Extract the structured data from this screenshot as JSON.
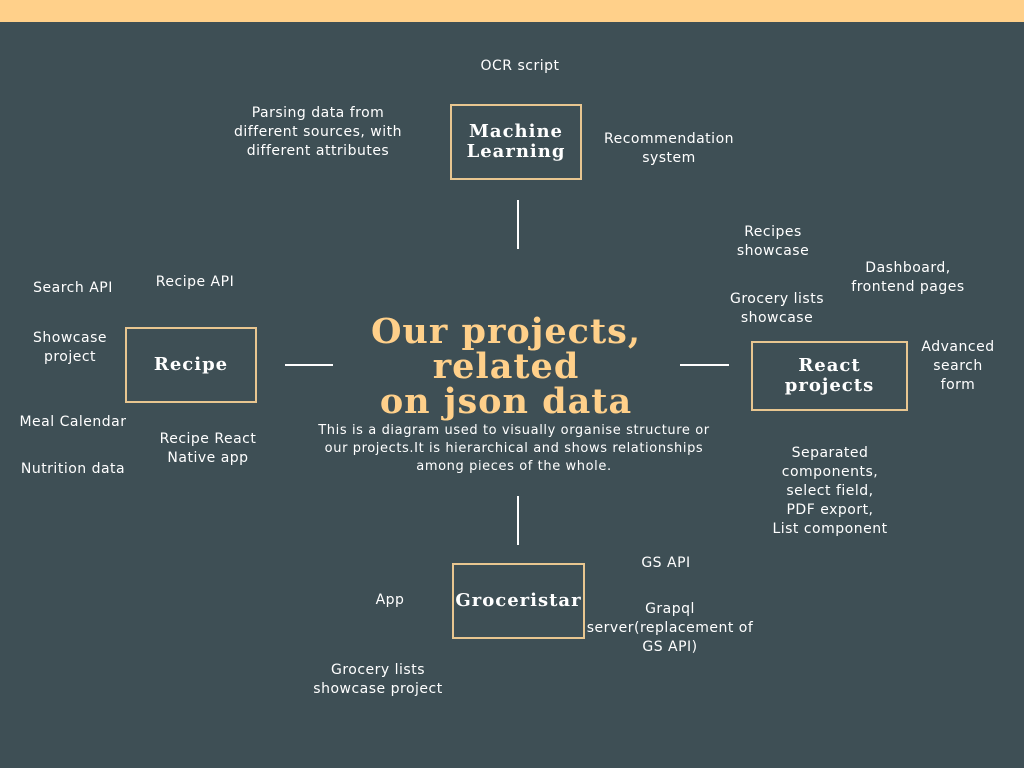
{
  "title": "Our projects, related\non json data",
  "description": "This is a diagram used to visually organise structure or our projects.It is hierarchical and shows relationships among pieces of the whole.",
  "colors": {
    "background": "#3e4f55",
    "top_bar": "#ffd08a",
    "title": "#ffd08a",
    "box_border": "#e8c690",
    "text": "#ffffff"
  },
  "nodes": {
    "machine_learning": {
      "label": "Machine\nLearning",
      "items": {
        "ocr": "OCR script",
        "parsing": "Parsing data from\ndifferent sources, with\ndifferent attributes",
        "recommendation": "Recommendation\nsystem"
      }
    },
    "recipe": {
      "label": "Recipe",
      "items": {
        "search_api": "Search API",
        "recipe_api": "Recipe API",
        "showcase": "Showcase\nproject",
        "meal_calendar": "Meal Calendar",
        "nutrition": "Nutrition data",
        "react_native": "Recipe React\nNative app"
      }
    },
    "react_projects": {
      "label": "React\nprojects",
      "items": {
        "recipes_showcase": "Recipes\nshowcase",
        "dashboard": "Dashboard,\nfrontend pages",
        "grocery_showcase": "Grocery lists\nshowcase",
        "advanced_search": "Advanced\nsearch\nform",
        "components": "Separated\ncomponents,\nselect field,\nPDF export,\nList component"
      }
    },
    "groceristar": {
      "label": "Groceristar",
      "items": {
        "gs_api": "GS API",
        "app": "App",
        "graphql": "Grapql\nserver(replacement of\nGS API)",
        "grocery_showcase": "Grocery lists\nshowcase project"
      }
    }
  }
}
